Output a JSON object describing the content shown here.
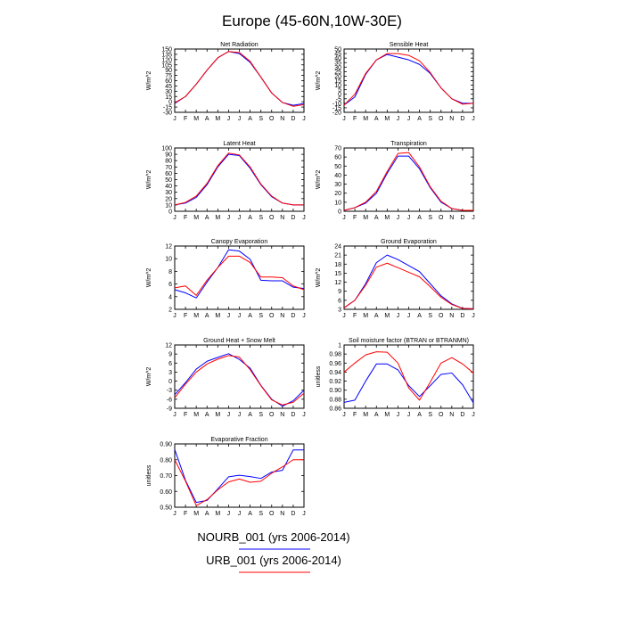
{
  "figure": {
    "title": "Europe (45-60N,10W-30E)",
    "colors": {
      "NOURB_001": "#0000ff",
      "URB_001": "#ff0000",
      "axis": "#000000"
    }
  },
  "legend": {
    "items": [
      {
        "label": "NOURB_001 (yrs 2006-2014)",
        "color": "#0000ff"
      },
      {
        "label": "URB_001 (yrs 2006-2014)",
        "color": "#ff0000"
      }
    ]
  },
  "chart_data": [
    {
      "type": "line",
      "title": "Net Radiation",
      "ylabel": "W/m^2",
      "categories": [
        "J",
        "F",
        "M",
        "A",
        "M",
        "J",
        "J",
        "A",
        "S",
        "O",
        "N",
        "D",
        "J"
      ],
      "ylim": [
        -30,
        150
      ],
      "yticks": [
        -30,
        -15,
        0,
        15,
        30,
        45,
        60,
        75,
        90,
        105,
        120,
        135,
        150
      ],
      "series": [
        {
          "name": "NOURB_001",
          "color": "#0000ff",
          "values": [
            -5,
            15,
            50,
            90,
            125,
            143,
            137,
            112,
            70,
            25,
            -2,
            -10,
            -5
          ]
        },
        {
          "name": "URB_001",
          "color": "#ff0000",
          "values": [
            -3,
            15,
            50,
            90,
            125,
            143,
            140,
            115,
            70,
            25,
            -2,
            -13,
            -8
          ]
        }
      ]
    },
    {
      "type": "line",
      "title": "Sensible Heat",
      "ylabel": "W/m^2",
      "categories": [
        "J",
        "F",
        "M",
        "A",
        "M",
        "J",
        "J",
        "A",
        "S",
        "O",
        "N",
        "D",
        "J"
      ],
      "ylim": [
        -20,
        50
      ],
      "yticks": [
        -20,
        -15,
        -10,
        -5,
        0,
        5,
        10,
        15,
        20,
        25,
        30,
        35,
        40,
        45,
        50
      ],
      "series": [
        {
          "name": "NOURB_001",
          "color": "#0000ff",
          "values": [
            -12,
            -3,
            22,
            38,
            44,
            41,
            38,
            33,
            23,
            7,
            -5,
            -10,
            -10
          ]
        },
        {
          "name": "URB_001",
          "color": "#ff0000",
          "values": [
            -12,
            0,
            23,
            38,
            45,
            45,
            43,
            37,
            24,
            7,
            -5,
            -11,
            -10
          ]
        }
      ]
    },
    {
      "type": "line",
      "title": "Latent Heat",
      "ylabel": "W/m^2",
      "categories": [
        "J",
        "F",
        "M",
        "A",
        "M",
        "J",
        "J",
        "A",
        "S",
        "O",
        "N",
        "D",
        "J"
      ],
      "ylim": [
        0,
        100
      ],
      "yticks": [
        0,
        10,
        20,
        30,
        40,
        50,
        60,
        70,
        80,
        90,
        100
      ],
      "series": [
        {
          "name": "NOURB_001",
          "color": "#0000ff",
          "values": [
            10,
            13,
            22,
            42,
            70,
            90,
            88,
            68,
            42,
            23,
            13,
            10,
            10
          ]
        },
        {
          "name": "URB_001",
          "color": "#ff0000",
          "values": [
            10,
            14,
            24,
            44,
            72,
            92,
            89,
            70,
            43,
            24,
            13,
            10,
            10
          ]
        }
      ]
    },
    {
      "type": "line",
      "title": "Transpiration",
      "ylabel": "W/m^2",
      "categories": [
        "J",
        "F",
        "M",
        "A",
        "M",
        "J",
        "J",
        "A",
        "S",
        "O",
        "N",
        "D",
        "J"
      ],
      "ylim": [
        0,
        70
      ],
      "yticks": [
        0,
        10,
        20,
        30,
        40,
        50,
        60,
        70
      ],
      "series": [
        {
          "name": "NOURB_001",
          "color": "#0000ff",
          "values": [
            1,
            4,
            9,
            20,
            42,
            61,
            61,
            47,
            26,
            10,
            3,
            1,
            1
          ]
        },
        {
          "name": "URB_001",
          "color": "#ff0000",
          "values": [
            1,
            4,
            10,
            22,
            44,
            64,
            65,
            49,
            27,
            11,
            3,
            1,
            1
          ]
        }
      ]
    },
    {
      "type": "line",
      "title": "Canopy Evaporation",
      "ylabel": "W/m^2",
      "categories": [
        "J",
        "F",
        "M",
        "A",
        "M",
        "J",
        "J",
        "A",
        "S",
        "O",
        "N",
        "D",
        "J"
      ],
      "ylim": [
        2,
        12
      ],
      "yticks": [
        2,
        4,
        6,
        8,
        10,
        12
      ],
      "series": [
        {
          "name": "NOURB_001",
          "color": "#0000ff",
          "values": [
            5.1,
            4.6,
            3.8,
            6.3,
            8.6,
            11.4,
            11.2,
            9.9,
            6.6,
            6.5,
            6.5,
            5.5,
            5.3
          ]
        },
        {
          "name": "URB_001",
          "color": "#ff0000",
          "values": [
            5.4,
            5.7,
            4.2,
            6.6,
            8.6,
            10.4,
            10.4,
            9.4,
            7.1,
            7.1,
            7.0,
            5.7,
            5.1
          ]
        }
      ]
    },
    {
      "type": "line",
      "title": "Ground Evaporation",
      "ylabel": "W/m^2",
      "categories": [
        "J",
        "F",
        "M",
        "A",
        "M",
        "J",
        "J",
        "A",
        "S",
        "O",
        "N",
        "D",
        "J"
      ],
      "ylim": [
        3,
        24
      ],
      "yticks": [
        3,
        6,
        9,
        12,
        15,
        18,
        21,
        24
      ],
      "series": [
        {
          "name": "NOURB_001",
          "color": "#0000ff",
          "values": [
            3.5,
            6,
            11.5,
            18.5,
            21,
            19.5,
            17.5,
            15.5,
            11.5,
            7.5,
            4.8,
            3.3,
            3.2
          ]
        },
        {
          "name": "URB_001",
          "color": "#ff0000",
          "values": [
            3.5,
            6,
            11,
            17,
            18.3,
            16.8,
            15.3,
            13.8,
            10.5,
            7,
            4.6,
            3.3,
            3.2
          ]
        }
      ]
    },
    {
      "type": "line",
      "title": "Ground Heat + Snow Melt",
      "ylabel": "W/m^2",
      "categories": [
        "J",
        "F",
        "M",
        "A",
        "M",
        "J",
        "J",
        "A",
        "S",
        "O",
        "N",
        "D",
        "J"
      ],
      "ylim": [
        -9,
        12
      ],
      "yticks": [
        -9,
        -6,
        -3,
        0,
        3,
        6,
        9,
        12
      ],
      "series": [
        {
          "name": "NOURB_001",
          "color": "#0000ff",
          "values": [
            -4.5,
            -0.5,
            4,
            6.6,
            7.9,
            9.1,
            7.2,
            4.3,
            -1.4,
            -6,
            -8.3,
            -6.5,
            -3
          ]
        },
        {
          "name": "URB_001",
          "color": "#ff0000",
          "values": [
            -5.5,
            -1,
            3,
            5.7,
            7.3,
            8.5,
            8,
            3.8,
            -1.5,
            -6.2,
            -7.9,
            -7,
            -4
          ]
        }
      ]
    },
    {
      "type": "line",
      "title": "Soil moisture factor (BTRAN or BTRANMN)",
      "ylabel": "unitless",
      "categories": [
        "J",
        "F",
        "M",
        "A",
        "M",
        "J",
        "J",
        "A",
        "S",
        "O",
        "N",
        "D",
        "J"
      ],
      "ylim": [
        0.86,
        1.0
      ],
      "yticks": [
        0.86,
        0.88,
        0.9,
        0.92,
        0.94,
        0.96,
        0.98,
        1.0
      ],
      "series": [
        {
          "name": "NOURB_001",
          "color": "#0000ff",
          "values": [
            0.873,
            0.878,
            0.92,
            0.958,
            0.958,
            0.945,
            0.91,
            0.886,
            0.91,
            0.935,
            0.938,
            0.912,
            0.872
          ]
        },
        {
          "name": "URB_001",
          "color": "#ff0000",
          "values": [
            0.94,
            0.96,
            0.978,
            0.985,
            0.984,
            0.96,
            0.905,
            0.878,
            0.918,
            0.96,
            0.972,
            0.958,
            0.938
          ]
        }
      ]
    },
    {
      "type": "line",
      "title": "Evaporative Fraction",
      "ylabel": "unitless",
      "categories": [
        "J",
        "F",
        "M",
        "A",
        "M",
        "J",
        "J",
        "A",
        "S",
        "O",
        "N",
        "D",
        "J"
      ],
      "ylim": [
        0.5,
        0.9
      ],
      "yticks": [
        0.5,
        0.6,
        0.7,
        0.8,
        0.9
      ],
      "series": [
        {
          "name": "NOURB_001",
          "color": "#0000ff",
          "values": [
            0.865,
            0.67,
            0.53,
            0.543,
            0.616,
            0.692,
            0.702,
            0.694,
            0.682,
            0.722,
            0.733,
            0.862,
            0.862
          ]
        },
        {
          "name": "URB_001",
          "color": "#ff0000",
          "values": [
            0.8,
            0.665,
            0.51,
            0.548,
            0.61,
            0.66,
            0.678,
            0.658,
            0.664,
            0.715,
            0.755,
            0.8,
            0.8
          ]
        }
      ]
    }
  ]
}
